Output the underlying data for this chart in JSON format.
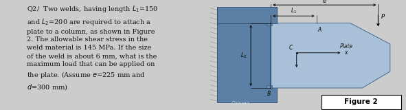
{
  "bg_color": "#cccccc",
  "text_color": "#111111",
  "column_color_dark": "#5b7fa5",
  "column_color_light": "#6b8fb5",
  "plate_color": "#a8c0d8",
  "weld_color": "#7090b0",
  "figure_label": "Figure 2",
  "column_label": "Column",
  "plate_label": "Plate",
  "white": "#ffffff",
  "text_lines": [
    "Q2/  Two welds, having length $L_1$=150",
    "and $L_2$=200 are required to attach a",
    "plate to a column, as shown in Figure",
    "2. The allowable shear stress in the",
    "weld material is 145 MPa. If the size",
    "of the weld is about 6 mm, what is the",
    "maximum load that can be applied on",
    "the plate. (Assume $e$=225 mm and",
    "$d$=300 mm)"
  ]
}
